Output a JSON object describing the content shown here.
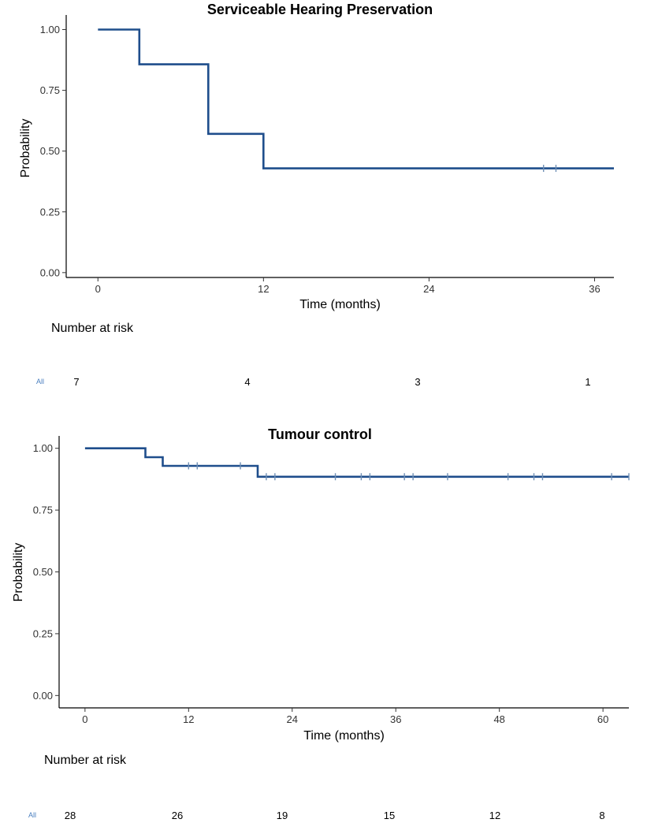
{
  "chart_data": [
    {
      "type": "line",
      "subtype": "kaplan-meier-step",
      "title": "Serviceable Hearing Preservation",
      "xlabel": "Time (months)",
      "ylabel": "Probability",
      "xlim": [
        -2.3,
        37.4
      ],
      "ylim": [
        -0.02,
        1.06
      ],
      "xticks": [
        0,
        12,
        24,
        36
      ],
      "yticks": [
        0.0,
        0.25,
        0.5,
        0.75,
        1.0
      ],
      "ytick_labels": [
        "0.00",
        "0.25",
        "0.50",
        "0.75",
        "1.00"
      ],
      "grid": false,
      "series": [
        {
          "steps": [
            [
              0,
              1.0
            ],
            [
              3,
              0.857
            ],
            [
              8,
              0.571
            ],
            [
              12,
              0.429
            ],
            [
              37.4,
              0.429
            ]
          ],
          "censored": [
            [
              32.3,
              0.429
            ],
            [
              33.2,
              0.429
            ]
          ]
        }
      ],
      "risk_table": {
        "title": "Number at risk",
        "group": "All",
        "times": [
          0,
          12,
          24,
          36
        ],
        "values": [
          "7",
          "4",
          "3",
          "1"
        ]
      },
      "color": "#1f4e8c"
    },
    {
      "type": "line",
      "subtype": "kaplan-meier-step",
      "title": "Tumour control",
      "xlabel": "Time (months)",
      "ylabel": "Probability",
      "xlim": [
        -3,
        63
      ],
      "ylim": [
        -0.05,
        1.05
      ],
      "xticks": [
        0,
        12,
        24,
        36,
        48,
        60
      ],
      "yticks": [
        0.0,
        0.25,
        0.5,
        0.75,
        1.0
      ],
      "ytick_labels": [
        "0.00",
        "0.25",
        "0.50",
        "0.75",
        "1.00"
      ],
      "grid": false,
      "series": [
        {
          "steps": [
            [
              0,
              1.0
            ],
            [
              7,
              0.964
            ],
            [
              9,
              0.929
            ],
            [
              20,
              0.885
            ],
            [
              63,
              0.885
            ]
          ],
          "censored": [
            [
              12,
              0.929
            ],
            [
              13,
              0.929
            ],
            [
              18,
              0.929
            ],
            [
              21,
              0.885
            ],
            [
              22,
              0.885
            ],
            [
              29,
              0.885
            ],
            [
              32,
              0.885
            ],
            [
              33,
              0.885
            ],
            [
              37,
              0.885
            ],
            [
              38,
              0.885
            ],
            [
              42,
              0.885
            ],
            [
              49,
              0.885
            ],
            [
              52,
              0.885
            ],
            [
              53,
              0.885
            ],
            [
              61,
              0.885
            ],
            [
              63,
              0.885
            ]
          ]
        }
      ],
      "risk_table": {
        "title": "Number at risk",
        "group": "All",
        "times": [
          0,
          12,
          24,
          36,
          48,
          60
        ],
        "values": [
          "28",
          "26",
          "19",
          "15",
          "12",
          "8"
        ]
      },
      "color": "#1f4e8c"
    }
  ]
}
